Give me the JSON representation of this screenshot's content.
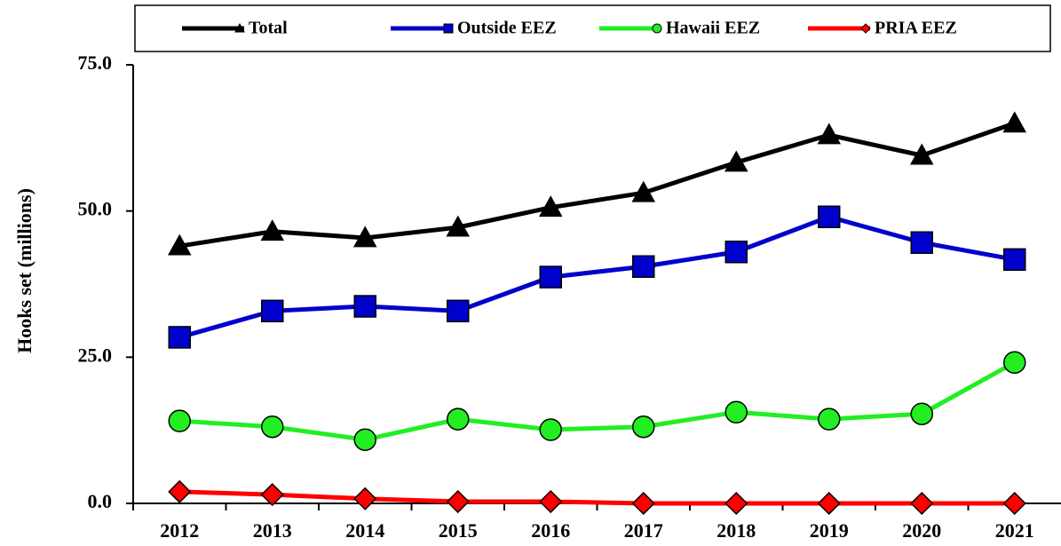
{
  "chart_data": {
    "type": "line",
    "y_label": "Hooks set (millions)",
    "categories": [
      "2012",
      "2013",
      "2014",
      "2015",
      "2016",
      "2017",
      "2018",
      "2019",
      "2020",
      "2021"
    ],
    "series": [
      {
        "name": "Total",
        "color": "#000000",
        "marker": "triangle",
        "values": [
          44.0,
          46.5,
          45.4,
          47.2,
          50.6,
          53.1,
          58.3,
          63.0,
          59.5,
          65.0
        ]
      },
      {
        "name": "Outside EEZ",
        "color": "#0000cc",
        "marker": "square",
        "values": [
          28.4,
          32.9,
          33.7,
          32.9,
          38.7,
          40.5,
          43.0,
          49.0,
          44.6,
          41.7
        ]
      },
      {
        "name": "Hawaii EEZ",
        "color": "#22ee22",
        "marker": "circle",
        "values": [
          14.1,
          13.1,
          10.9,
          14.4,
          12.6,
          13.1,
          15.6,
          14.4,
          15.3,
          24.1
        ]
      },
      {
        "name": "PRIA EEZ",
        "color": "#ff0000",
        "marker": "diamond",
        "values": [
          2.0,
          1.5,
          0.8,
          0.3,
          0.3,
          0,
          0,
          0,
          0,
          0
        ]
      }
    ],
    "ylim": [
      0,
      75
    ],
    "yticks": [
      {
        "value": 0,
        "label": "0.0"
      },
      {
        "value": 25,
        "label": "25.0"
      },
      {
        "value": 50,
        "label": "50.0"
      },
      {
        "value": 75,
        "label": "75.0"
      }
    ],
    "legend": "top"
  }
}
